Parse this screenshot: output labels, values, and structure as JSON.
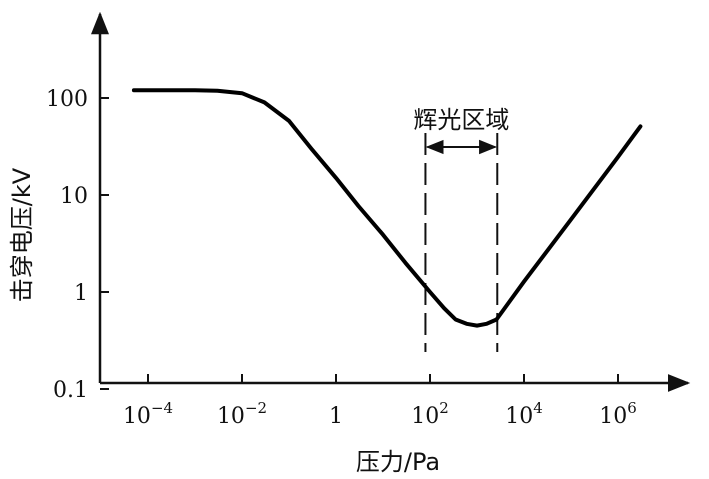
{
  "chart_data": {
    "type": "line",
    "title": "",
    "xlabel": "压力/Pa",
    "ylabel": "击穿电压/kV",
    "x_scale": "log",
    "y_scale": "log",
    "x_ticks": [
      {
        "value": 0.0001,
        "base": "10",
        "exp": "−4"
      },
      {
        "value": 0.01,
        "base": "10",
        "exp": "−2"
      },
      {
        "value": 1,
        "base": "1",
        "exp": ""
      },
      {
        "value": 100,
        "base": "10",
        "exp": "2"
      },
      {
        "value": 10000,
        "base": "10",
        "exp": "4"
      },
      {
        "value": 1000000,
        "base": "10",
        "exp": "6"
      }
    ],
    "y_ticks": [
      {
        "value": 0.1,
        "label": "0.1"
      },
      {
        "value": 1,
        "label": "1"
      },
      {
        "value": 10,
        "label": "10"
      },
      {
        "value": 100,
        "label": "100"
      }
    ],
    "grid": false,
    "series": [
      {
        "color": "#000000",
        "x": [
          5e-05,
          0.0003,
          0.001,
          0.003,
          0.01,
          0.03,
          0.1,
          0.3,
          1,
          3,
          10,
          30,
          100,
          200,
          350,
          600,
          1000,
          1600,
          2600,
          10000,
          100000,
          1000000,
          3000000
        ],
        "y": [
          120,
          120,
          120,
          119,
          112,
          90,
          58,
          30,
          15,
          7.7,
          3.9,
          2.0,
          1.0,
          0.68,
          0.52,
          0.47,
          0.45,
          0.47,
          0.52,
          1.28,
          5.6,
          24.7,
          51
        ]
      }
    ],
    "annotations": [
      {
        "text": "辉光区域",
        "x_start": 80,
        "x_end": 2700,
        "style": "double-arrow with dashed vertical bounds"
      }
    ]
  }
}
